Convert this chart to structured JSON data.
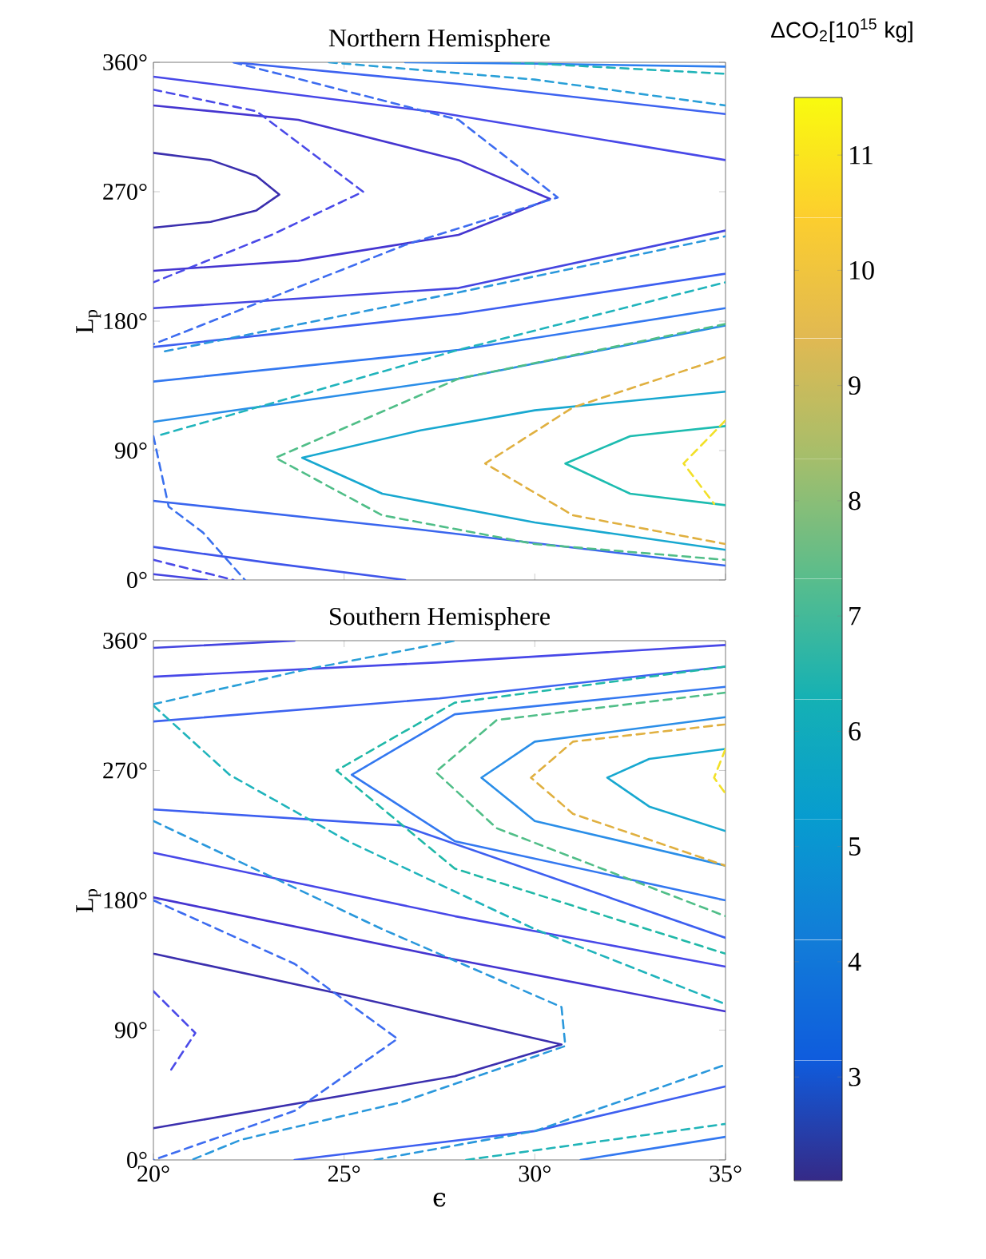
{
  "chart_data": [
    {
      "type": "line",
      "title": "Northern Hemisphere",
      "ylabel": "L$_{p}$",
      "xlim": [
        20,
        35
      ],
      "ylim": [
        0,
        360
      ],
      "xticks": [
        20,
        25,
        30,
        35
      ],
      "yticks": [
        {
          "value": 0,
          "label": "0°"
        },
        {
          "value": 90,
          "label": "90°"
        },
        {
          "value": 180,
          "label": "180°"
        },
        {
          "value": 270,
          "label": "270°"
        },
        {
          "value": 360,
          "label": "360°"
        }
      ],
      "tick_labels": "y",
      "clabel": "ΔCO$_{2}$[10$^{15}$ kg]",
      "clim": [
        2.1,
        11.5
      ],
      "cticks": [
        3,
        4,
        5,
        6,
        7,
        8,
        9,
        10,
        11
      ],
      "series": [
        {
          "color": "#3b2fae",
          "line_style": "solid",
          "x": [
            20,
            21.5,
            22.7,
            23.3,
            22.7,
            21.5,
            20
          ],
          "values": [
            297,
            292,
            281,
            268,
            257,
            249,
            245
          ]
        },
        {
          "color": "#4535d0",
          "line_style": "solid",
          "x": [
            20,
            23.8,
            28,
            30.4,
            28,
            23.8,
            20
          ],
          "values": [
            330,
            320,
            292,
            265,
            240,
            222,
            215
          ]
        },
        {
          "color": "#4848e8",
          "line_style": "solid",
          "x": [
            20,
            27.5,
            35
          ],
          "values": [
            350,
            325,
            292
          ]
        },
        {
          "color": "#3d63f0",
          "line_style": "solid",
          "x": [
            22.1,
            28,
            35
          ],
          "values": [
            360,
            345,
            324
          ]
        },
        {
          "color": "#2e7ff0",
          "line_style": "solid",
          "x": [
            26.6,
            30,
            35
          ],
          "values": [
            360,
            359,
            357
          ]
        },
        {
          "color": "#4545e0",
          "line_style": "solid",
          "x": [
            20,
            28,
            35
          ],
          "values": [
            189,
            203,
            243
          ]
        },
        {
          "color": "#3d5ff0",
          "line_style": "solid",
          "x": [
            20,
            28,
            35
          ],
          "values": [
            162,
            185,
            213
          ]
        },
        {
          "color": "#3378f0",
          "line_style": "solid",
          "x": [
            20,
            28,
            35
          ],
          "values": [
            138,
            160,
            189
          ]
        },
        {
          "color": "#2a8ee8",
          "line_style": "solid",
          "x": [
            20,
            28,
            35
          ],
          "values": [
            110,
            140,
            177
          ]
        },
        {
          "color": "#18a8d0",
          "line_style": "solid",
          "x": [
            35,
            30,
            27,
            23.9,
            26,
            30,
            35
          ],
          "values": [
            131,
            118,
            104,
            85,
            60,
            40,
            21
          ]
        },
        {
          "color": "#1dbcb0",
          "line_style": "solid",
          "x": [
            35,
            32.5,
            30.8,
            32.5,
            35
          ],
          "values": [
            107,
            100,
            81,
            60,
            52
          ]
        },
        {
          "color": "#3a66ee",
          "line_style": "solid",
          "x": [
            20,
            27,
            35
          ],
          "values": [
            55,
            35,
            10
          ]
        },
        {
          "color": "#3f55ea",
          "line_style": "solid",
          "x": [
            20,
            23,
            26.6
          ],
          "values": [
            23,
            12,
            0
          ]
        },
        {
          "color": "#4444e0",
          "line_style": "solid",
          "x": [
            20,
            21.4
          ],
          "values": [
            4,
            0
          ]
        },
        {
          "color": "#4a4ae8",
          "line_style": "dashed",
          "x": [
            20,
            22.7,
            25.5,
            23.1,
            20
          ],
          "values": [
            341,
            326,
            270,
            240,
            207
          ]
        },
        {
          "color": "#3d6cf0",
          "line_style": "dashed",
          "x": [
            22.1,
            28,
            30.6,
            26.6,
            20
          ],
          "values": [
            360,
            320,
            266,
            233,
            164
          ]
        },
        {
          "color": "#2aa0d8",
          "line_style": "dashed",
          "x": [
            24.6,
            30,
            35
          ],
          "values": [
            360,
            348,
            330
          ]
        },
        {
          "color": "#20b4b8",
          "line_style": "dashed",
          "x": [
            29.4,
            35
          ],
          "values": [
            360,
            352
          ]
        },
        {
          "color": "#2a98dc",
          "line_style": "dashed",
          "x": [
            20.3,
            28,
            35
          ],
          "values": [
            159,
            200,
            239
          ]
        },
        {
          "color": "#20b4bc",
          "line_style": "dashed",
          "x": [
            20.2,
            28,
            35
          ],
          "values": [
            101,
            160,
            207
          ]
        },
        {
          "color": "#50be88",
          "line_style": "dashed",
          "x": [
            35,
            28,
            23.2,
            26,
            30,
            35
          ],
          "values": [
            178,
            140,
            85,
            45,
            25,
            14
          ]
        },
        {
          "color": "#e0b040",
          "line_style": "dashed",
          "x": [
            35,
            31,
            28.7,
            31,
            35
          ],
          "values": [
            155,
            120,
            81,
            45,
            25
          ]
        },
        {
          "color": "#f2e028",
          "line_style": "dashed",
          "x": [
            35,
            33.9,
            34.7
          ],
          "values": [
            111,
            81,
            53
          ]
        },
        {
          "color": "#3a70ee",
          "line_style": "dashed",
          "x": [
            20,
            20.4,
            21.3,
            22.4
          ],
          "values": [
            100,
            51,
            33,
            0
          ]
        },
        {
          "color": "#4a4ae8",
          "line_style": "dashed",
          "x": [
            20,
            22.1
          ],
          "values": [
            14,
            0
          ]
        }
      ]
    },
    {
      "type": "line",
      "title": "Southern Hemisphere",
      "xlabel": "ϵ",
      "ylabel": "L$_{p}$",
      "xlim": [
        20,
        35
      ],
      "ylim": [
        0,
        360
      ],
      "xticks": [
        {
          "value": 20,
          "label": "20°"
        },
        {
          "value": 25,
          "label": "25°"
        },
        {
          "value": 30,
          "label": "30°"
        },
        {
          "value": 35,
          "label": "35°"
        }
      ],
      "yticks": [
        {
          "value": 0,
          "label": "0°"
        },
        {
          "value": 90,
          "label": "90°"
        },
        {
          "value": 180,
          "label": "180°"
        },
        {
          "value": 270,
          "label": "270°"
        },
        {
          "value": 360,
          "label": "360°"
        }
      ],
      "series": [
        {
          "color": "#3b2fae",
          "line_style": "solid",
          "x": [
            20,
            25.1,
            30.7,
            27.9,
            20
          ],
          "values": [
            143,
            114,
            80,
            58,
            22
          ]
        },
        {
          "color": "#4535d0",
          "line_style": "solid",
          "x": [
            20,
            27.9,
            35
          ],
          "values": [
            182,
            139,
            103
          ]
        },
        {
          "color": "#4848e8",
          "line_style": "solid",
          "x": [
            20,
            27.9,
            35
          ],
          "values": [
            213,
            169,
            134
          ]
        },
        {
          "color": "#3d5ff0",
          "line_style": "solid",
          "x": [
            20,
            26.5,
            35
          ],
          "values": [
            243,
            232,
            154
          ]
        },
        {
          "color": "#3378f0",
          "line_style": "solid",
          "x": [
            35,
            27.9,
            25.2,
            27.9,
            35
          ],
          "values": [
            328,
            309,
            267,
            221,
            180
          ]
        },
        {
          "color": "#2a8ee8",
          "line_style": "solid",
          "x": [
            35,
            30,
            28.6,
            30,
            35
          ],
          "values": [
            307,
            290,
            265,
            235,
            204
          ]
        },
        {
          "color": "#18a8d0",
          "line_style": "solid",
          "x": [
            35,
            33,
            31.9,
            33,
            35
          ],
          "values": [
            285,
            278,
            265,
            245,
            228
          ]
        },
        {
          "color": "#4545e0",
          "line_style": "solid",
          "x": [
            20,
            23.7
          ],
          "values": [
            355,
            360
          ]
        },
        {
          "color": "#4848e8",
          "line_style": "solid",
          "x": [
            20,
            27.5,
            35
          ],
          "values": [
            335,
            345,
            357
          ]
        },
        {
          "color": "#3d63f0",
          "line_style": "solid",
          "x": [
            20,
            27.5,
            35
          ],
          "values": [
            304,
            320,
            342
          ]
        },
        {
          "color": "#3d5ff0",
          "line_style": "solid",
          "x": [
            23.7,
            30,
            35
          ],
          "values": [
            0,
            20,
            51
          ]
        },
        {
          "color": "#3378f0",
          "line_style": "solid",
          "x": [
            31.2,
            35
          ],
          "values": [
            0,
            16
          ]
        },
        {
          "color": "#4a4ae8",
          "line_style": "dashed",
          "x": [
            20,
            21.1,
            20.4
          ],
          "values": [
            117,
            88,
            60
          ]
        },
        {
          "color": "#3d6cf0",
          "line_style": "dashed",
          "x": [
            20,
            23.7,
            26.4,
            23.7,
            20
          ],
          "values": [
            180,
            136,
            84,
            34,
            0
          ]
        },
        {
          "color": "#2a98dc",
          "line_style": "dashed",
          "x": [
            20,
            26,
            30.7,
            30.8,
            26.5,
            22.3,
            21
          ],
          "values": [
            235,
            160,
            106,
            79,
            40,
            14,
            0
          ]
        },
        {
          "color": "#20b4bc",
          "line_style": "dashed",
          "x": [
            20,
            22,
            25.1,
            30,
            35
          ],
          "values": [
            315,
            267,
            221,
            160,
            108
          ]
        },
        {
          "color": "#20b8a8",
          "line_style": "dashed",
          "x": [
            35,
            27.9,
            24.8,
            27.9,
            35
          ],
          "values": [
            342,
            317,
            270,
            202,
            143
          ]
        },
        {
          "color": "#50be88",
          "line_style": "dashed",
          "x": [
            35,
            29,
            27.4,
            29,
            35
          ],
          "values": [
            324,
            305,
            269,
            230,
            169
          ]
        },
        {
          "color": "#e0b040",
          "line_style": "dashed",
          "x": [
            35,
            31,
            29.9,
            31,
            35
          ],
          "values": [
            302,
            290,
            265,
            240,
            204
          ]
        },
        {
          "color": "#f2e028",
          "line_style": "dashed",
          "x": [
            35,
            34.7,
            35
          ],
          "values": [
            285,
            265,
            254
          ]
        },
        {
          "color": "#2aa0d8",
          "line_style": "dashed",
          "x": [
            20,
            24,
            27.9
          ],
          "values": [
            316,
            340,
            360
          ]
        },
        {
          "color": "#20b4b8",
          "line_style": "dashed",
          "x": [
            28.2,
            35
          ],
          "values": [
            0,
            25
          ]
        },
        {
          "color": "#2a98dc",
          "line_style": "dashed",
          "x": [
            25.8,
            30,
            35
          ],
          "values": [
            0,
            20,
            66
          ]
        }
      ]
    }
  ]
}
